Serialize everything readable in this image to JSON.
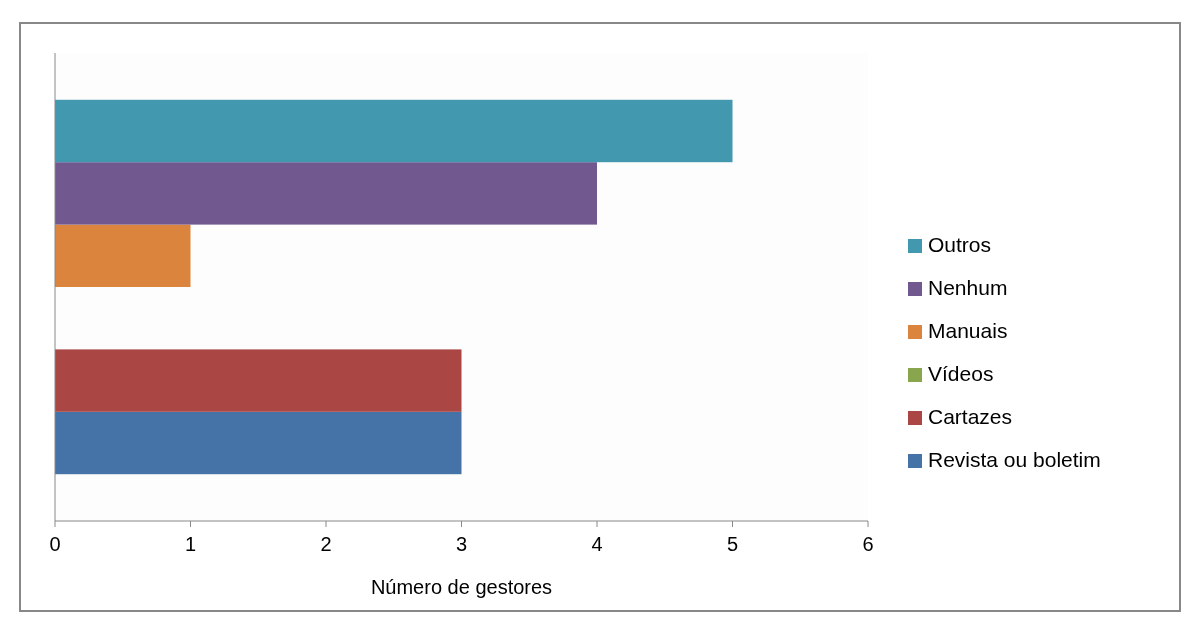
{
  "chart_data": {
    "type": "bar",
    "orientation": "horizontal",
    "categories": [
      null
    ],
    "xlabel": "Número de gestores",
    "xlim": [
      0,
      6
    ],
    "xticks": [
      0,
      1,
      2,
      3,
      4,
      5,
      6
    ],
    "legend": "right",
    "series": [
      {
        "name": "Revista ou boletim",
        "color": "#4572a7",
        "values": [
          3
        ]
      },
      {
        "name": "Cartazes",
        "color": "#aa4643",
        "values": [
          3
        ]
      },
      {
        "name": "Vídeos",
        "color": "#89a54e",
        "values": [
          0
        ]
      },
      {
        "name": "Manuais",
        "color": "#db843d",
        "values": [
          1
        ]
      },
      {
        "name": "Nenhum",
        "color": "#71588f",
        "values": [
          4
        ]
      },
      {
        "name": "Outros",
        "color": "#4198af",
        "values": [
          5
        ]
      }
    ]
  }
}
